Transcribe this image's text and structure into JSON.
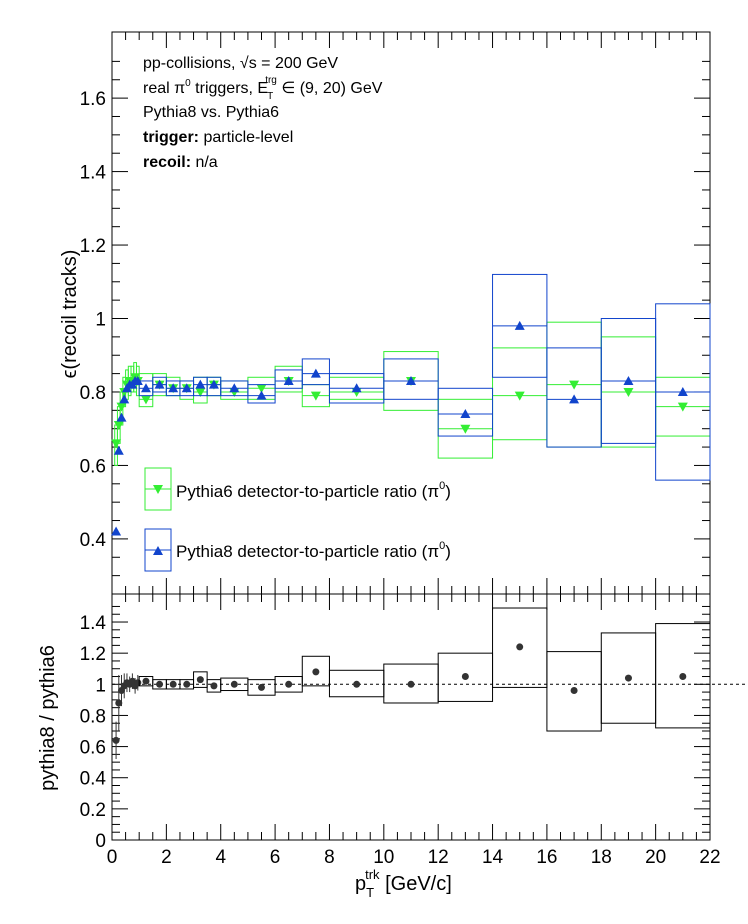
{
  "annotations": {
    "line1": "pp-collisions, √s = 200 GeV",
    "line2_a": "real π",
    "line2_sup": "0",
    "line2_b": " triggers, E",
    "line2_sub": "T",
    "line2_sup2": "trg",
    "line2_c": " ∈ (9, 20) GeV",
    "line3": "Pythia8 vs. Pythia6",
    "line4_bold": "trigger:",
    "line4_rest": " particle-level",
    "line5_bold": "recoil:",
    "line5_rest": " n/a"
  },
  "colors": {
    "pythia6": "#33ee33",
    "pythia8": "#1144cc",
    "ratio": "#333333"
  },
  "chart_data": [
    {
      "type": "scatter",
      "panel": "top",
      "ylabel": "ϵ(recoil tracks)",
      "ylim": [
        0.25,
        1.78
      ],
      "xlim": [
        0,
        22
      ],
      "yticks": [
        "0.4",
        "0.6",
        "0.8",
        "1",
        "1.2",
        "1.4",
        "1.6"
      ],
      "legend_position": "lower-left",
      "series": [
        {
          "name": "Pythia6 detector-to-particle ratio (π0)",
          "legend_a": "Pythia6 detector-to-particle ratio (π",
          "legend_sup": "0",
          "legend_b": ")",
          "marker": "triangle-down",
          "points": [
            {
              "x": 0.15,
              "y": 0.66,
              "xerr": 0.05,
              "lo": 0.6,
              "hi": 0.71
            },
            {
              "x": 0.25,
              "y": 0.71,
              "xerr": 0.05,
              "lo": 0.66,
              "hi": 0.76
            },
            {
              "x": 0.35,
              "y": 0.76,
              "xerr": 0.05,
              "lo": 0.71,
              "hi": 0.8
            },
            {
              "x": 0.45,
              "y": 0.8,
              "xerr": 0.05,
              "lo": 0.76,
              "hi": 0.84
            },
            {
              "x": 0.55,
              "y": 0.82,
              "xerr": 0.05,
              "lo": 0.78,
              "hi": 0.86
            },
            {
              "x": 0.65,
              "y": 0.83,
              "xerr": 0.05,
              "lo": 0.79,
              "hi": 0.87
            },
            {
              "x": 0.75,
              "y": 0.83,
              "xerr": 0.05,
              "lo": 0.8,
              "hi": 0.87
            },
            {
              "x": 0.85,
              "y": 0.84,
              "xerr": 0.05,
              "lo": 0.8,
              "hi": 0.88
            },
            {
              "x": 0.95,
              "y": 0.83,
              "xerr": 0.05,
              "lo": 0.79,
              "hi": 0.87
            },
            {
              "x": 1.25,
              "y": 0.78,
              "xerr": 0.25,
              "lo": 0.76,
              "hi": 0.85
            },
            {
              "x": 1.75,
              "y": 0.82,
              "xerr": 0.25,
              "lo": 0.79,
              "hi": 0.85
            },
            {
              "x": 2.25,
              "y": 0.81,
              "xerr": 0.25,
              "lo": 0.79,
              "hi": 0.84
            },
            {
              "x": 2.75,
              "y": 0.81,
              "xerr": 0.25,
              "lo": 0.78,
              "hi": 0.83
            },
            {
              "x": 3.25,
              "y": 0.8,
              "xerr": 0.25,
              "lo": 0.77,
              "hi": 0.84
            },
            {
              "x": 3.75,
              "y": 0.82,
              "xerr": 0.25,
              "lo": 0.79,
              "hi": 0.84
            },
            {
              "x": 4.5,
              "y": 0.8,
              "xerr": 0.5,
              "lo": 0.78,
              "hi": 0.83
            },
            {
              "x": 5.5,
              "y": 0.81,
              "xerr": 0.5,
              "lo": 0.78,
              "hi": 0.84
            },
            {
              "x": 6.5,
              "y": 0.83,
              "xerr": 0.5,
              "lo": 0.8,
              "hi": 0.87
            },
            {
              "x": 7.5,
              "y": 0.79,
              "xerr": 0.5,
              "lo": 0.76,
              "hi": 0.82
            },
            {
              "x": 9,
              "y": 0.8,
              "xerr": 1,
              "lo": 0.78,
              "hi": 0.84
            },
            {
              "x": 11,
              "y": 0.83,
              "xerr": 1,
              "lo": 0.75,
              "hi": 0.91
            },
            {
              "x": 13,
              "y": 0.7,
              "xerr": 1,
              "lo": 0.62,
              "hi": 0.78
            },
            {
              "x": 15,
              "y": 0.79,
              "xerr": 1,
              "lo": 0.67,
              "hi": 0.92
            },
            {
              "x": 17,
              "y": 0.82,
              "xerr": 1,
              "lo": 0.65,
              "hi": 0.99
            },
            {
              "x": 19,
              "y": 0.8,
              "xerr": 1,
              "lo": 0.65,
              "hi": 0.95
            },
            {
              "x": 21,
              "y": 0.76,
              "xerr": 1,
              "lo": 0.68,
              "hi": 0.84
            }
          ]
        },
        {
          "name": "Pythia8 detector-to-particle ratio (π0)",
          "legend_a": "Pythia8 detector-to-particle ratio (π",
          "legend_sup": "0",
          "legend_b": ")",
          "marker": "triangle-up",
          "points": [
            {
              "x": 0.15,
              "y": 0.42
            },
            {
              "x": 0.25,
              "y": 0.64
            },
            {
              "x": 0.35,
              "y": 0.73
            },
            {
              "x": 0.45,
              "y": 0.78
            },
            {
              "x": 0.55,
              "y": 0.81
            },
            {
              "x": 0.65,
              "y": 0.82
            },
            {
              "x": 0.75,
              "y": 0.82
            },
            {
              "x": 0.85,
              "y": 0.83
            },
            {
              "x": 0.95,
              "y": 0.83
            },
            {
              "x": 1.25,
              "y": 0.81,
              "xerr": 0.25,
              "lo": 0.79,
              "hi": 0.83
            },
            {
              "x": 1.75,
              "y": 0.82,
              "xerr": 0.25,
              "lo": 0.8,
              "hi": 0.84
            },
            {
              "x": 2.25,
              "y": 0.81,
              "xerr": 0.25,
              "lo": 0.79,
              "hi": 0.83
            },
            {
              "x": 2.75,
              "y": 0.81,
              "xerr": 0.25,
              "lo": 0.79,
              "hi": 0.83
            },
            {
              "x": 3.25,
              "y": 0.82,
              "xerr": 0.25,
              "lo": 0.79,
              "hi": 0.84
            },
            {
              "x": 3.75,
              "y": 0.82,
              "xerr": 0.25,
              "lo": 0.79,
              "hi": 0.84
            },
            {
              "x": 4.5,
              "y": 0.81,
              "xerr": 0.5,
              "lo": 0.79,
              "hi": 0.83
            },
            {
              "x": 5.5,
              "y": 0.79,
              "xerr": 0.5,
              "lo": 0.77,
              "hi": 0.82
            },
            {
              "x": 6.5,
              "y": 0.83,
              "xerr": 0.5,
              "lo": 0.81,
              "hi": 0.86
            },
            {
              "x": 7.5,
              "y": 0.85,
              "xerr": 0.5,
              "lo": 0.82,
              "hi": 0.89
            },
            {
              "x": 9,
              "y": 0.81,
              "xerr": 1,
              "lo": 0.77,
              "hi": 0.85
            },
            {
              "x": 11,
              "y": 0.83,
              "xerr": 1,
              "lo": 0.78,
              "hi": 0.89
            },
            {
              "x": 13,
              "y": 0.74,
              "xerr": 1,
              "lo": 0.68,
              "hi": 0.81
            },
            {
              "x": 15,
              "y": 0.98,
              "xerr": 1,
              "lo": 0.84,
              "hi": 1.12
            },
            {
              "x": 17,
              "y": 0.78,
              "xerr": 1,
              "lo": 0.65,
              "hi": 0.92
            },
            {
              "x": 19,
              "y": 0.83,
              "xerr": 1,
              "lo": 0.66,
              "hi": 1.0
            },
            {
              "x": 21,
              "y": 0.8,
              "xerr": 1,
              "lo": 0.56,
              "hi": 1.04
            }
          ]
        }
      ]
    },
    {
      "type": "scatter",
      "panel": "bottom",
      "ylabel": "pythia8 / pythia6",
      "xlabel_a": "p",
      "xlabel_sub": "T",
      "xlabel_sup": "trk",
      "xlabel_b": " [GeV/c]",
      "xlim": [
        0,
        22
      ],
      "ylim": [
        0,
        1.58
      ],
      "reference_line": 1,
      "xticks": [
        "0",
        "2",
        "4",
        "6",
        "8",
        "10",
        "12",
        "14",
        "16",
        "18",
        "20",
        "22"
      ],
      "yticks": [
        "0",
        "0.2",
        "0.4",
        "0.6",
        "0.8",
        "1",
        "1.2",
        "1.4"
      ],
      "series": [
        {
          "name": "pythia8 / pythia6",
          "marker": "circle",
          "points": [
            {
              "x": 0.15,
              "y": 0.64,
              "yerr": 0.12
            },
            {
              "x": 0.25,
              "y": 0.88,
              "yerr": 0.18
            },
            {
              "x": 0.35,
              "y": 0.96,
              "yerr": 0.1
            },
            {
              "x": 0.45,
              "y": 0.99,
              "yerr": 0.08
            },
            {
              "x": 0.55,
              "y": 1.01,
              "yerr": 0.06
            },
            {
              "x": 0.65,
              "y": 1.0,
              "yerr": 0.05
            },
            {
              "x": 0.75,
              "y": 1.02,
              "yerr": 0.05
            },
            {
              "x": 0.85,
              "y": 0.99,
              "yerr": 0.05
            },
            {
              "x": 0.95,
              "y": 1.01,
              "yerr": 0.05
            },
            {
              "x": 1.25,
              "y": 1.02,
              "xerr": 0.25,
              "lo": 0.99,
              "hi": 1.05
            },
            {
              "x": 1.75,
              "y": 1.0,
              "xerr": 0.25,
              "lo": 0.97,
              "hi": 1.03
            },
            {
              "x": 2.25,
              "y": 1.0,
              "xerr": 0.25,
              "lo": 0.97,
              "hi": 1.03
            },
            {
              "x": 2.75,
              "y": 1.0,
              "xerr": 0.25,
              "lo": 0.97,
              "hi": 1.03
            },
            {
              "x": 3.25,
              "y": 1.03,
              "xerr": 0.25,
              "lo": 0.98,
              "hi": 1.08
            },
            {
              "x": 3.75,
              "y": 0.99,
              "xerr": 0.25,
              "lo": 0.95,
              "hi": 1.03
            },
            {
              "x": 4.5,
              "y": 1.0,
              "xerr": 0.5,
              "lo": 0.96,
              "hi": 1.04
            },
            {
              "x": 5.5,
              "y": 0.98,
              "xerr": 0.5,
              "lo": 0.93,
              "hi": 1.03
            },
            {
              "x": 6.5,
              "y": 1.0,
              "xerr": 0.5,
              "lo": 0.95,
              "hi": 1.05
            },
            {
              "x": 7.5,
              "y": 1.08,
              "xerr": 0.5,
              "lo": 0.99,
              "hi": 1.18
            },
            {
              "x": 9,
              "y": 1.0,
              "xerr": 1,
              "lo": 0.92,
              "hi": 1.09
            },
            {
              "x": 11,
              "y": 1.0,
              "xerr": 1,
              "lo": 0.88,
              "hi": 1.13
            },
            {
              "x": 13,
              "y": 1.05,
              "xerr": 1,
              "lo": 0.89,
              "hi": 1.2
            },
            {
              "x": 15,
              "y": 1.24,
              "xerr": 1,
              "lo": 0.98,
              "hi": 1.49
            },
            {
              "x": 17,
              "y": 0.96,
              "xerr": 1,
              "lo": 0.7,
              "hi": 1.21
            },
            {
              "x": 19,
              "y": 1.04,
              "xerr": 1,
              "lo": 0.75,
              "hi": 1.33
            },
            {
              "x": 21,
              "y": 1.05,
              "xerr": 1,
              "lo": 0.72,
              "hi": 1.39
            }
          ]
        }
      ]
    }
  ]
}
